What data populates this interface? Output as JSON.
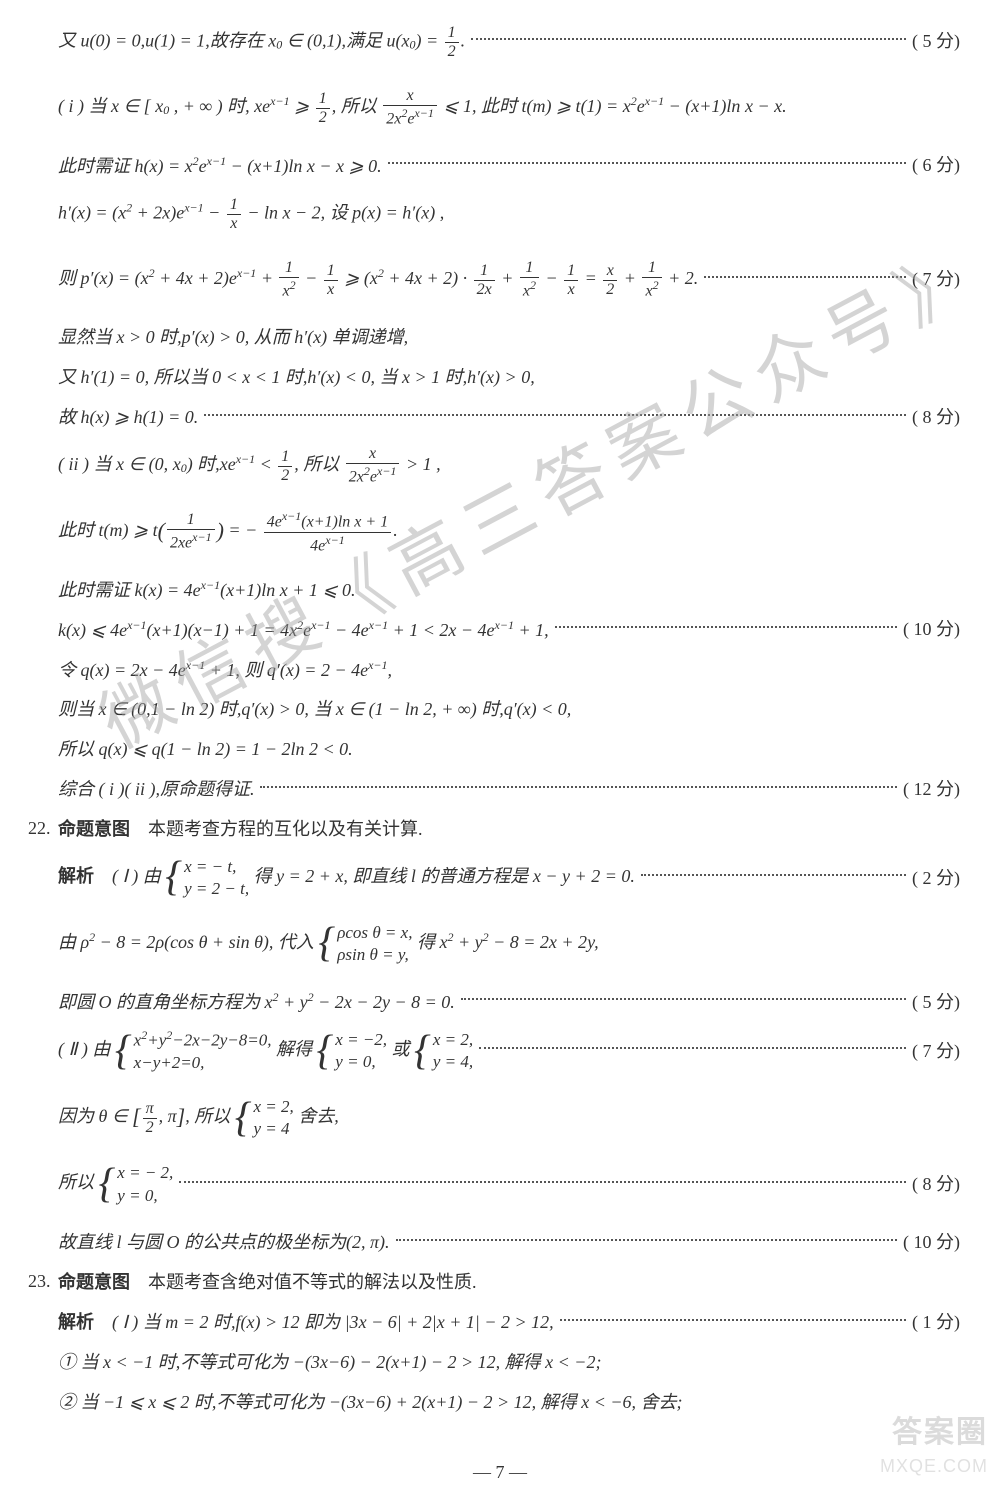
{
  "watermark_text": "微信搜《高三答案公众号》",
  "bottom_watermark": {
    "line1": "答案圈",
    "line2": "MXQE.COM"
  },
  "page_number": "— 7 —",
  "lines": [
    {
      "text_html": "又 <i>u</i>(0) = 0,<i>u</i>(1) = 1,故存在 <i>x</i><sub>0</sub> ∈ (0,1),满足 <i>u</i>(<i>x</i><sub>0</sub>) = <span class='frac'><span class='num'>1</span><span class='den'>2</span></span>.",
      "score": "( 5 分)",
      "tall": true
    },
    {
      "text_html": "( i ) 当 <i>x</i> ∈ [ <i>x</i><sub>0</sub> , + ∞ ) 时, <i>x</i>e<sup><i>x</i>−1</sup> ⩾ <span class='frac'><span class='num'>1</span><span class='den'>2</span></span>, 所以 <span class='frac'><span class='num'><i>x</i></span><span class='den'>2<i>x</i><sup>2</sup>e<sup><i>x</i>−1</sup></span></span> ⩽ 1, 此时 <i>t</i>(<i>m</i>) ⩾ <i>t</i>(1) = <i>x</i><sup>2</sup>e<sup><i>x</i>−1</sup> − (<i>x</i>+1)ln <i>x</i> − <i>x</i>.",
      "score": "",
      "tall": true
    },
    {
      "text_html": "此时需证 <i>h</i>(<i>x</i>) = <i>x</i><sup>2</sup>e<sup><i>x</i>−1</sup> − (<i>x</i>+1)ln <i>x</i> − <i>x</i> ⩾ 0.",
      "score": "( 6 分)"
    },
    {
      "text_html": "<i>h</i>′(<i>x</i>) = (<i>x</i><sup>2</sup> + 2<i>x</i>)e<sup><i>x</i>−1</sup> − <span class='frac'><span class='num'>1</span><span class='den'><i>x</i></span></span> − ln <i>x</i> − 2, 设 <i>p</i>(<i>x</i>) = <i>h</i>′(<i>x</i>) ,",
      "score": "",
      "tall": true
    },
    {
      "text_html": "则 <i>p</i>′(<i>x</i>) = (<i>x</i><sup>2</sup> + 4<i>x</i> + 2)e<sup><i>x</i>−1</sup> + <span class='frac'><span class='num'>1</span><span class='den'><i>x</i><sup>2</sup></span></span> − <span class='frac'><span class='num'>1</span><span class='den'><i>x</i></span></span> ⩾ (<i>x</i><sup>2</sup> + 4<i>x</i> + 2) · <span class='frac'><span class='num'>1</span><span class='den'>2<i>x</i></span></span> + <span class='frac'><span class='num'>1</span><span class='den'><i>x</i><sup>2</sup></span></span> − <span class='frac'><span class='num'>1</span><span class='den'><i>x</i></span></span> = <span class='frac'><span class='num'><i>x</i></span><span class='den'>2</span></span> + <span class='frac'><span class='num'>1</span><span class='den'><i>x</i><sup>2</sup></span></span> + 2.",
      "score": "( 7 分)",
      "tall": true
    },
    {
      "text_html": "显然当 <i>x</i> > 0 时,<i>p</i>′(<i>x</i>) > 0, 从而 <i>h</i>′(<i>x</i>) 单调递增,",
      "score": ""
    },
    {
      "text_html": "又 <i>h</i>′(1) = 0, 所以当 0 < <i>x</i> < 1 时,<i>h</i>′(<i>x</i>) < 0, 当 <i>x</i> > 1 时,<i>h</i>′(<i>x</i>) > 0,",
      "score": ""
    },
    {
      "text_html": "故 <i>h</i>(<i>x</i>) ⩾ <i>h</i>(1) = 0.",
      "score": "( 8 分)"
    },
    {
      "text_html": "( ii ) 当 <i>x</i> ∈ (0, <i>x</i><sub>0</sub>) 时,<i>x</i>e<sup><i>x</i>−1</sup> < <span class='frac'><span class='num'>1</span><span class='den'>2</span></span>, 所以 <span class='frac'><span class='num'><i>x</i></span><span class='den'>2<i>x</i><sup>2</sup>e<sup><i>x</i>−1</sup></span></span> > 1 ,",
      "score": "",
      "tall": true
    },
    {
      "text_html": "此时 <i>t</i>(<i>m</i>) ⩾ <i>t</i><span class='sqbr'>(</span><span class='frac'><span class='num'>1</span><span class='den'>2<i>x</i>e<sup><i>x</i>−1</sup></span></span><span class='sqbr'>)</span> = − <span class='frac'><span class='num'>4e<sup><i>x</i>−1</sup>(<i>x</i>+1)ln <i>x</i> + 1</span><span class='den'>4e<sup><i>x</i>−1</sup></span></span>.",
      "score": "",
      "tall": true
    },
    {
      "text_html": "此时需证 <i>k</i>(<i>x</i>) = 4e<sup><i>x</i>−1</sup>(<i>x</i>+1)ln <i>x</i> + 1 ⩽ 0.",
      "score": ""
    },
    {
      "text_html": "<i>k</i>(<i>x</i>) ⩽ 4e<sup><i>x</i>−1</sup>(<i>x</i>+1)(<i>x</i>−1) + 1 = 4<i>x</i><sup>2</sup>e<sup><i>x</i>−1</sup> − 4e<sup><i>x</i>−1</sup> + 1 < 2<i>x</i> − 4e<sup><i>x</i>−1</sup> + 1,",
      "score": "( 10 分)"
    },
    {
      "text_html": "令 <i>q</i>(<i>x</i>) = 2<i>x</i> − 4e<sup><i>x</i>−1</sup> + 1, 则 <i>q</i>′(<i>x</i>) = 2 − 4e<sup><i>x</i>−1</sup>,",
      "score": ""
    },
    {
      "text_html": "则当 <i>x</i> ∈ (0,1 − ln 2) 时,<i>q</i>′(<i>x</i>) > 0, 当 <i>x</i> ∈ (1 − ln 2, + ∞) 时,<i>q</i>′(<i>x</i>) < 0,",
      "score": ""
    },
    {
      "text_html": "所以 <i>q</i>(<i>x</i>) ⩽ <i>q</i>(1 − ln 2) = 1 − 2ln 2 < 0.",
      "score": ""
    },
    {
      "text_html": "综合 ( i )( ii ),原命题得证.",
      "score": "( 12 分)"
    }
  ],
  "q22": {
    "number": "22.",
    "intent_label": "命题意图",
    "intent_text": "本题考查方程的互化以及有关计算.",
    "analysis_label": "解析",
    "lines": [
      {
        "text_html": "( Ⅰ ) 由 <span class='brace-sys'><span class='brace'>{</span><span class='rows'><span><i>x</i> = − <i>t</i>,</span><span><i>y</i> = 2 − <i>t</i>,</span></span></span> 得 <i>y</i> = 2 + <i>x</i>, 即直线 <i>l</i> 的普通方程是 <i>x</i> − <i>y</i> + 2 = 0.",
        "score": "( 2 分)",
        "tall": true
      },
      {
        "text_html": "由 <i>ρ</i><sup>2</sup> − 8 = 2<i>ρ</i>(cos <i>θ</i> + sin <i>θ</i>), 代入 <span class='brace-sys'><span class='brace'>{</span><span class='rows'><span><i>ρ</i>cos <i>θ</i> = <i>x</i>,</span><span><i>ρ</i>sin <i>θ</i> = <i>y</i>,</span></span></span> 得 <i>x</i><sup>2</sup> + <i>y</i><sup>2</sup> − 8 = 2<i>x</i> + 2<i>y</i>,",
        "score": "",
        "tall": true
      },
      {
        "text_html": "即圆 <i>O</i> 的直角坐标方程为 <i>x</i><sup>2</sup> + <i>y</i><sup>2</sup> − 2<i>x</i> − 2<i>y</i> − 8 = 0.",
        "score": "( 5 分)"
      },
      {
        "text_html": "( Ⅱ ) 由 <span class='brace-sys'><span class='brace'>{</span><span class='rows'><span><i>x</i><sup>2</sup>+<i>y</i><sup>2</sup>−2<i>x</i>−2<i>y</i>−8=0,</span><span><i>x</i>−<i>y</i>+2=0,</span></span></span> 解得 <span class='brace-sys'><span class='brace'>{</span><span class='rows'><span><i>x</i> = −2,</span><span><i>y</i> = 0,</span></span></span> 或 <span class='brace-sys'><span class='brace'>{</span><span class='rows'><span><i>x</i> = 2,</span><span><i>y</i> = 4,</span></span></span>",
        "score": "( 7 分)",
        "tall": true
      },
      {
        "text_html": "因为 <i>θ</i> ∈ <span class='sqbr'>[</span><span class='frac'><span class='num'>π</span><span class='den'>2</span></span>, π<span class='sqbr'>]</span>, 所以 <span class='brace-sys'><span class='brace'>{</span><span class='rows'><span><i>x</i> = 2,</span><span><i>y</i> = 4</span></span></span> 舍去,",
        "score": "",
        "tall": true
      },
      {
        "text_html": "所以 <span class='brace-sys'><span class='brace'>{</span><span class='rows'><span><i>x</i> = − 2,</span><span><i>y</i> = 0,</span></span></span>",
        "score": "( 8 分)",
        "tall": true
      },
      {
        "text_html": "故直线 <i>l</i> 与圆 <i>O</i> 的公共点的极坐标为(2, π).",
        "score": "( 10 分)"
      }
    ]
  },
  "q23": {
    "number": "23.",
    "intent_label": "命题意图",
    "intent_text": "本题考查含绝对值不等式的解法以及性质.",
    "analysis_label": "解析",
    "lines": [
      {
        "text_html": "( Ⅰ ) 当 <i>m</i> = 2 时,<i>f</i>(<i>x</i>) > 12 即为 |3<i>x</i> − 6| + 2|<i>x</i> + 1| − 2 > 12,",
        "score": "( 1 分)"
      },
      {
        "text_html": "① 当 <i>x</i> < −1 时,不等式可化为 −(3<i>x</i>−6) − 2(<i>x</i>+1) − 2 > 12, 解得 <i>x</i> < −2;",
        "score": ""
      },
      {
        "text_html": "② 当 −1 ⩽ <i>x</i> ⩽ 2 时,不等式可化为 −(3<i>x</i>−6) + 2(<i>x</i>+1) − 2 > 12, 解得 <i>x</i> < −6, 舍去;",
        "score": ""
      }
    ]
  }
}
